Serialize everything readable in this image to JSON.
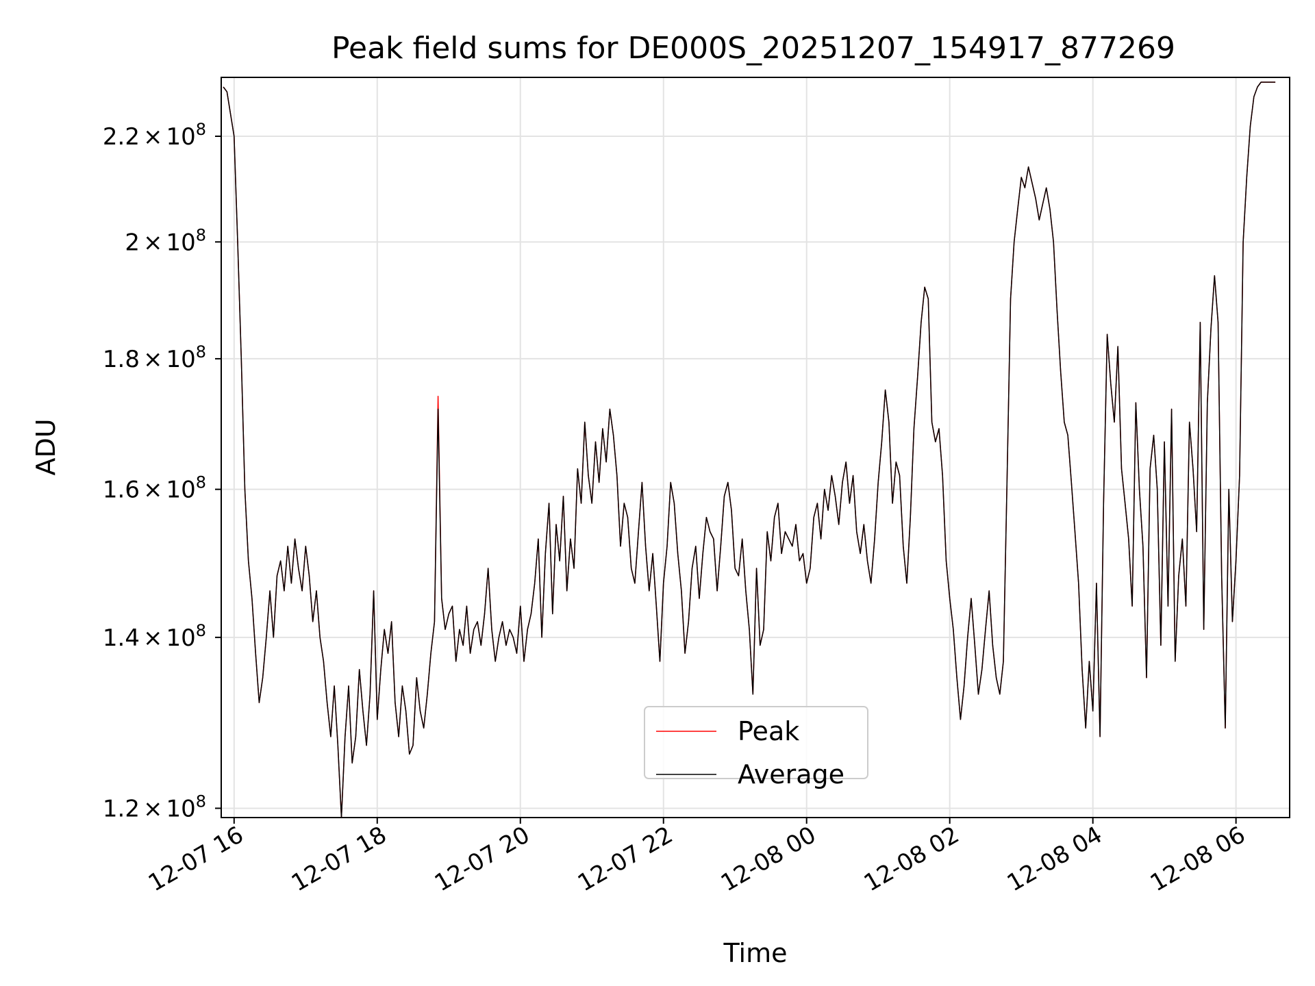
{
  "chart_data": {
    "type": "line",
    "title": "Peak field sums for DE000S_20251207_154917_877269",
    "xlabel": "Time",
    "ylabel": "ADU",
    "y_scale": "log",
    "grid": true,
    "legend_position": "lower-center",
    "x_range_hours": [
      15.82,
      30.75
    ],
    "ylim": [
      119000000,
      232000000
    ],
    "x_ticks": [
      {
        "hour": 16,
        "label": "12-07 16"
      },
      {
        "hour": 18,
        "label": "12-07 18"
      },
      {
        "hour": 20,
        "label": "12-07 20"
      },
      {
        "hour": 22,
        "label": "12-07 22"
      },
      {
        "hour": 24,
        "label": "12-08 00"
      },
      {
        "hour": 26,
        "label": "12-08 02"
      },
      {
        "hour": 28,
        "label": "12-08 04"
      },
      {
        "hour": 30,
        "label": "12-08 06"
      }
    ],
    "y_ticks": [
      {
        "value": 120000000,
        "mantissa": "1.2",
        "base": "10",
        "exponent": "8"
      },
      {
        "value": 140000000,
        "mantissa": "1.4",
        "base": "10",
        "exponent": "8"
      },
      {
        "value": 160000000,
        "mantissa": "1.6",
        "base": "10",
        "exponent": "8"
      },
      {
        "value": 180000000,
        "mantissa": "1.8",
        "base": "10",
        "exponent": "8"
      },
      {
        "value": 200000000,
        "mantissa": "2",
        "base": "10",
        "exponent": "8"
      },
      {
        "value": 220000000,
        "mantissa": "2.2",
        "base": "10",
        "exponent": "8"
      }
    ],
    "x_hours": [
      15.85,
      15.9,
      16.0,
      16.05,
      16.1,
      16.15,
      16.2,
      16.25,
      16.3,
      16.35,
      16.4,
      16.45,
      16.5,
      16.55,
      16.6,
      16.65,
      16.7,
      16.75,
      16.8,
      16.85,
      16.9,
      16.95,
      17.0,
      17.05,
      17.1,
      17.15,
      17.2,
      17.25,
      17.3,
      17.35,
      17.4,
      17.45,
      17.5,
      17.55,
      17.6,
      17.65,
      17.7,
      17.75,
      17.8,
      17.85,
      17.9,
      17.95,
      18.0,
      18.05,
      18.1,
      18.15,
      18.2,
      18.25,
      18.3,
      18.35,
      18.4,
      18.45,
      18.5,
      18.55,
      18.6,
      18.65,
      18.7,
      18.75,
      18.8,
      18.85,
      18.9,
      18.95,
      19.0,
      19.05,
      19.1,
      19.15,
      19.2,
      19.25,
      19.3,
      19.35,
      19.4,
      19.45,
      19.5,
      19.55,
      19.6,
      19.65,
      19.7,
      19.75,
      19.8,
      19.85,
      19.9,
      19.95,
      20.0,
      20.05,
      20.1,
      20.15,
      20.2,
      20.25,
      20.3,
      20.35,
      20.4,
      20.45,
      20.5,
      20.55,
      20.6,
      20.65,
      20.7,
      20.75,
      20.8,
      20.85,
      20.9,
      20.95,
      21.0,
      21.05,
      21.1,
      21.15,
      21.2,
      21.25,
      21.3,
      21.35,
      21.4,
      21.45,
      21.5,
      21.55,
      21.6,
      21.65,
      21.7,
      21.75,
      21.8,
      21.85,
      21.9,
      21.95,
      22.0,
      22.05,
      22.1,
      22.15,
      22.2,
      22.25,
      22.3,
      22.35,
      22.4,
      22.45,
      22.5,
      22.55,
      22.6,
      22.65,
      22.7,
      22.75,
      22.8,
      22.85,
      22.9,
      22.95,
      23.0,
      23.05,
      23.1,
      23.15,
      23.2,
      23.25,
      23.3,
      23.35,
      23.4,
      23.45,
      23.5,
      23.55,
      23.6,
      23.65,
      23.7,
      23.75,
      23.8,
      23.85,
      23.9,
      23.95,
      24.0,
      24.05,
      24.1,
      24.15,
      24.2,
      24.25,
      24.3,
      24.35,
      24.4,
      24.45,
      24.5,
      24.55,
      24.6,
      24.65,
      24.7,
      24.75,
      24.8,
      24.85,
      24.9,
      24.95,
      25.0,
      25.05,
      25.1,
      25.15,
      25.2,
      25.25,
      25.3,
      25.35,
      25.4,
      25.45,
      25.5,
      25.55,
      25.6,
      25.65,
      25.7,
      25.75,
      25.8,
      25.85,
      25.9,
      25.95,
      26.0,
      26.05,
      26.1,
      26.15,
      26.2,
      26.25,
      26.3,
      26.35,
      26.4,
      26.45,
      26.5,
      26.55,
      26.6,
      26.65,
      26.7,
      26.75,
      26.8,
      26.85,
      26.9,
      26.95,
      27.0,
      27.05,
      27.1,
      27.15,
      27.2,
      27.25,
      27.3,
      27.35,
      27.4,
      27.45,
      27.5,
      27.55,
      27.6,
      27.65,
      27.7,
      27.75,
      27.8,
      27.85,
      27.9,
      27.95,
      28.0,
      28.05,
      28.1,
      28.15,
      28.2,
      28.25,
      28.3,
      28.35,
      28.4,
      28.45,
      28.5,
      28.55,
      28.6,
      28.65,
      28.7,
      28.75,
      28.8,
      28.85,
      28.9,
      28.95,
      29.0,
      29.05,
      29.1,
      29.15,
      29.2,
      29.25,
      29.3,
      29.35,
      29.4,
      29.45,
      29.5,
      29.55,
      29.6,
      29.65,
      29.7,
      29.75,
      29.8,
      29.85,
      29.9,
      29.95,
      30.0,
      30.05,
      30.1,
      30.15,
      30.2,
      30.25,
      30.3,
      30.35,
      30.4,
      30.45,
      30.5,
      30.55,
      30.6,
      30.65,
      30.7
    ],
    "series": [
      {
        "name": "Average",
        "color": "#000000",
        "values": [
          230,
          229,
          220,
          200,
          180,
          160,
          150,
          145,
          138,
          132,
          135,
          140,
          146,
          140,
          148,
          150,
          146,
          152,
          147,
          153,
          149,
          146,
          152,
          148,
          142,
          146,
          140,
          137,
          132,
          128,
          134,
          127,
          119,
          128,
          134,
          125,
          128,
          136,
          131,
          127,
          133,
          146,
          130,
          136,
          141,
          138,
          142,
          132,
          128,
          134,
          131,
          126,
          127,
          135,
          131,
          129,
          133,
          138,
          142,
          172,
          145,
          141,
          143,
          144,
          137,
          141,
          139,
          144,
          138,
          141,
          142,
          139,
          143,
          149,
          141,
          137,
          140,
          142,
          139,
          141,
          140,
          138,
          144,
          137,
          141,
          143,
          147,
          153,
          140,
          151,
          158,
          143,
          155,
          150,
          159,
          146,
          153,
          149,
          163,
          158,
          170,
          162,
          158,
          167,
          161,
          169,
          164,
          172,
          168,
          162,
          152,
          158,
          156,
          149,
          147,
          154,
          161,
          152,
          146,
          151,
          144,
          137,
          147,
          152,
          161,
          158,
          151,
          146,
          138,
          142,
          149,
          152,
          145,
          151,
          156,
          154,
          153,
          146,
          152,
          159,
          161,
          157,
          149,
          148,
          153,
          146,
          141,
          133,
          149,
          139,
          141,
          154,
          150,
          156,
          158,
          151,
          154,
          153,
          152,
          155,
          150,
          151,
          147,
          149,
          156,
          158,
          153,
          160,
          157,
          162,
          159,
          155,
          161,
          164,
          158,
          162,
          154,
          151,
          155,
          150,
          147,
          153,
          161,
          167,
          175,
          170,
          158,
          164,
          162,
          152,
          147,
          156,
          169,
          177,
          186,
          192,
          190,
          170,
          167,
          169,
          162,
          150,
          145,
          141,
          135,
          130,
          134,
          140,
          145,
          139,
          133,
          136,
          141,
          146,
          139,
          135,
          133,
          137,
          161,
          190,
          200,
          206,
          212,
          210,
          214,
          211,
          208,
          204,
          207,
          210,
          206,
          200,
          188,
          178,
          170,
          168,
          161,
          154,
          147,
          136,
          129,
          137,
          131,
          147,
          128,
          158,
          184,
          176,
          170,
          182,
          163,
          158,
          153,
          144,
          173,
          160,
          152,
          135,
          163,
          168,
          160,
          139,
          167,
          144,
          172,
          137,
          148,
          153,
          144,
          170,
          163,
          154,
          186,
          141,
          173,
          185,
          194,
          186,
          148,
          129,
          160,
          142,
          150,
          162,
          200,
          212,
          222,
          228,
          230,
          231,
          231,
          231,
          231,
          231
        ]
      },
      {
        "name": "Peak",
        "color": "#ff0000",
        "values": [
          230,
          229,
          220,
          200,
          180,
          160,
          150,
          145,
          138,
          132,
          135,
          140,
          146,
          140,
          148,
          150,
          146,
          152,
          147,
          153,
          149,
          146,
          152,
          148,
          142,
          146,
          140,
          137,
          132,
          128,
          134,
          127,
          119,
          128,
          134,
          125,
          128,
          136,
          131,
          127,
          133,
          146,
          130,
          136,
          141,
          138,
          142,
          132,
          128,
          134,
          131,
          126,
          127,
          135,
          131,
          129,
          133,
          138,
          142,
          174,
          145,
          141,
          143,
          144,
          137,
          141,
          139,
          144,
          138,
          141,
          142,
          139,
          143,
          149,
          141,
          137,
          140,
          142,
          139,
          141,
          140,
          138,
          144,
          137,
          141,
          143,
          147,
          153,
          140,
          151,
          158,
          143,
          155,
          150,
          159,
          146,
          153,
          149,
          163,
          158,
          170,
          162,
          158,
          167,
          161,
          169,
          164,
          172,
          168,
          162,
          152,
          158,
          156,
          149,
          147,
          154,
          161,
          152,
          146,
          151,
          144,
          137,
          147,
          152,
          161,
          158,
          151,
          146,
          138,
          142,
          149,
          152,
          145,
          151,
          156,
          154,
          153,
          146,
          152,
          159,
          161,
          157,
          149,
          148,
          153,
          146,
          141,
          133,
          149,
          139,
          141,
          154,
          150,
          156,
          158,
          151,
          154,
          153,
          152,
          155,
          150,
          151,
          147,
          149,
          156,
          158,
          153,
          160,
          157,
          162,
          159,
          155,
          161,
          164,
          158,
          162,
          154,
          151,
          155,
          150,
          147,
          153,
          161,
          167,
          175,
          170,
          158,
          164,
          162,
          152,
          147,
          156,
          169,
          177,
          186,
          192,
          190,
          170,
          167,
          169,
          162,
          150,
          145,
          141,
          135,
          130,
          134,
          140,
          145,
          139,
          133,
          136,
          141,
          146,
          139,
          135,
          133,
          137,
          161,
          190,
          200,
          206,
          212,
          210,
          214,
          211,
          208,
          204,
          207,
          210,
          206,
          200,
          188,
          178,
          170,
          168,
          161,
          154,
          147,
          136,
          129,
          137,
          131,
          147,
          128,
          158,
          184,
          176,
          170,
          182,
          163,
          158,
          153,
          144,
          173,
          160,
          152,
          135,
          163,
          168,
          160,
          139,
          167,
          144,
          172,
          137,
          148,
          153,
          144,
          170,
          163,
          154,
          186,
          141,
          173,
          185,
          194,
          186,
          148,
          129,
          160,
          142,
          150,
          162,
          200,
          212,
          222,
          228,
          230,
          231,
          231,
          231,
          231,
          231
        ]
      }
    ],
    "value_unit": "millions of ADU (x 10^6)"
  }
}
